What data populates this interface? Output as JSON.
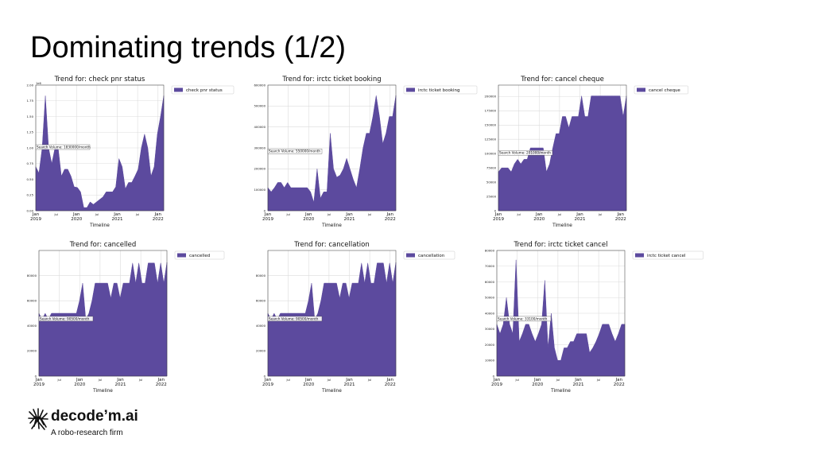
{
  "slide": {
    "title": "Dominating trends (1/2)"
  },
  "logo": {
    "name": "decode’m.ai",
    "tagline": "A robo-research firm"
  },
  "colors": {
    "area_fill": "#5c4a9e",
    "grid": "#dcdcdc",
    "axis": "#333333"
  },
  "chart_data": [
    {
      "type": "area",
      "title": "Trend for: check pnr status",
      "xlabel": "Timeline",
      "legend": "check pnr status",
      "legend_position": "top-right",
      "annotation": "Search Volume: 1830000/month",
      "annotation_value": 1.0,
      "y_scale_label": "1e6",
      "ylim": [
        0,
        2.0
      ],
      "yticks": [
        0,
        0.25,
        0.5,
        0.75,
        1.0,
        1.25,
        1.5,
        1.75,
        2.0
      ],
      "ytick_labels": [
        "0.00",
        "0.25",
        "0.50",
        "0.75",
        "1.00",
        "1.25",
        "1.50",
        "1.75",
        "2.00"
      ],
      "x_ticks": [
        "Jan\n2019",
        "Jul",
        "Jan\n2020",
        "Jul",
        "Jan\n2021",
        "Jul",
        "Jan\n2022"
      ],
      "grid": true,
      "values": [
        0.7,
        0.6,
        1.0,
        1.83,
        1.0,
        0.75,
        1.0,
        1.0,
        0.55,
        0.66,
        0.66,
        0.55,
        0.38,
        0.37,
        0.3,
        0.05,
        0.05,
        0.14,
        0.1,
        0.14,
        0.18,
        0.22,
        0.3,
        0.3,
        0.3,
        0.38,
        0.83,
        0.7,
        0.35,
        0.45,
        0.45,
        0.55,
        0.66,
        1.0,
        1.22,
        1.0,
        0.55,
        0.7,
        1.22,
        1.5,
        1.83
      ]
    },
    {
      "type": "area",
      "title": "Trend for: irctc ticket booking",
      "xlabel": "Timeline",
      "legend": "irctc ticket booking",
      "legend_position": "top-right",
      "annotation": "Search Volume: 550000/month",
      "annotation_value": 280000,
      "ylim": [
        0,
        600000
      ],
      "yticks": [
        0,
        100000,
        200000,
        300000,
        400000,
        500000,
        600000
      ],
      "ytick_labels": [
        "0",
        "100000",
        "200000",
        "300000",
        "400000",
        "500000",
        "600000"
      ],
      "x_ticks": [
        "Jan\n2019",
        "Jul",
        "Jan\n2020",
        "Jul",
        "Jan\n2021",
        "Jul",
        "Jan\n2022"
      ],
      "grid": true,
      "values": [
        110000,
        90000,
        110000,
        135000,
        135000,
        110000,
        135000,
        110000,
        110000,
        110000,
        110000,
        110000,
        110000,
        90000,
        40000,
        200000,
        60000,
        90000,
        90000,
        370000,
        200000,
        160000,
        170000,
        200000,
        250000,
        200000,
        150000,
        110000,
        200000,
        300000,
        370000,
        370000,
        450000,
        550000,
        450000,
        320000,
        370000,
        450000,
        450000,
        550000
      ]
    },
    {
      "type": "area",
      "title": "Trend for: cancel cheque",
      "xlabel": "Timeline",
      "legend": "cancel cheque",
      "legend_position": "top-right",
      "annotation": "Search Volume: 201000/month",
      "annotation_value": 100000,
      "ylim": [
        0,
        220000
      ],
      "yticks": [
        0,
        25000,
        50000,
        75000,
        100000,
        125000,
        150000,
        175000,
        200000
      ],
      "ytick_labels": [
        "0",
        "25000",
        "50000",
        "75000",
        "100000",
        "125000",
        "150000",
        "175000",
        "200000"
      ],
      "x_ticks": [
        "Jan\n2019",
        "Jul",
        "Jan\n2020",
        "Jul",
        "Jan\n2021",
        "Jul",
        "Jan\n2022"
      ],
      "grid": true,
      "values": [
        68000,
        75000,
        75000,
        75000,
        68000,
        82000,
        90000,
        82000,
        90000,
        90000,
        110000,
        110000,
        110000,
        110000,
        110000,
        68000,
        82000,
        110000,
        135000,
        135000,
        165000,
        165000,
        145000,
        165000,
        165000,
        165000,
        201000,
        165000,
        165000,
        201000,
        201000,
        201000,
        201000,
        201000,
        201000,
        201000,
        201000,
        201000,
        201000,
        165000,
        201000
      ]
    },
    {
      "type": "area",
      "title": "Trend for: cancelled",
      "xlabel": "Timeline",
      "legend": "cancelled",
      "legend_position": "top-right",
      "annotation": "Search Volume: 90500/month",
      "annotation_value": 45000,
      "ylim": [
        0,
        100000
      ],
      "yticks": [
        0,
        20000,
        40000,
        60000,
        80000
      ],
      "ytick_labels": [
        "0",
        "20000",
        "40000",
        "60000",
        "80000"
      ],
      "x_ticks": [
        "Jan\n2019",
        "Jul",
        "Jan\n2020",
        "Jul",
        "Jan\n2021",
        "Jul",
        "Jan\n2022"
      ],
      "grid": true,
      "values": [
        50000,
        45000,
        50000,
        45000,
        50000,
        50000,
        50000,
        50000,
        50000,
        50000,
        50000,
        50000,
        50000,
        60000,
        74000,
        45000,
        50000,
        60000,
        74000,
        74000,
        74000,
        74000,
        74000,
        62000,
        74000,
        74000,
        62000,
        74000,
        74000,
        74000,
        90000,
        74000,
        90000,
        74000,
        74000,
        90000,
        90000,
        90000,
        74000,
        90000,
        74000,
        90500
      ]
    },
    {
      "type": "area",
      "title": "Trend for: cancellation",
      "xlabel": "Timeline",
      "legend": "cancellation",
      "legend_position": "top-right",
      "annotation": "Search Volume: 90500/month",
      "annotation_value": 45000,
      "ylim": [
        0,
        100000
      ],
      "yticks": [
        0,
        20000,
        40000,
        60000,
        80000
      ],
      "ytick_labels": [
        "0",
        "20000",
        "40000",
        "60000",
        "80000"
      ],
      "x_ticks": [
        "Jan\n2019",
        "Jul",
        "Jan\n2020",
        "Jul",
        "Jan\n2021",
        "Jul",
        "Jan\n2022"
      ],
      "grid": true,
      "values": [
        50000,
        45000,
        50000,
        45000,
        50000,
        50000,
        50000,
        50000,
        50000,
        50000,
        50000,
        50000,
        50000,
        60000,
        74000,
        45000,
        50000,
        60000,
        74000,
        74000,
        74000,
        74000,
        74000,
        62000,
        74000,
        74000,
        62000,
        74000,
        74000,
        74000,
        90000,
        74000,
        90000,
        74000,
        74000,
        90000,
        90000,
        90000,
        74000,
        90000,
        74000,
        90500
      ]
    },
    {
      "type": "area",
      "title": "Trend for: irctc ticket cancel",
      "xlabel": "Timeline",
      "legend": "irctc ticket cancel",
      "legend_position": "top-right",
      "annotation": "Search Volume: 33100/month",
      "annotation_value": 36000,
      "ylim": [
        0,
        80000
      ],
      "yticks": [
        0,
        10000,
        20000,
        30000,
        40000,
        50000,
        60000,
        70000,
        80000
      ],
      "ytick_labels": [
        "0",
        "10000",
        "20000",
        "30000",
        "40000",
        "50000",
        "60000",
        "70000",
        "80000"
      ],
      "x_ticks": [
        "Jan\n2019",
        "Jul",
        "Jan\n2020",
        "Jul",
        "Jan\n2021",
        "Jul",
        "Jan\n2022"
      ],
      "grid": true,
      "values": [
        33000,
        27000,
        33000,
        50000,
        33000,
        27000,
        74000,
        22000,
        27000,
        33000,
        33000,
        27000,
        22000,
        27000,
        33000,
        61000,
        18000,
        40000,
        18000,
        10000,
        10000,
        18000,
        18000,
        22000,
        22000,
        27000,
        27000,
        27000,
        27000,
        15000,
        18000,
        22000,
        27000,
        33000,
        33000,
        33000,
        27000,
        22000,
        27000,
        33000,
        33000
      ]
    }
  ]
}
